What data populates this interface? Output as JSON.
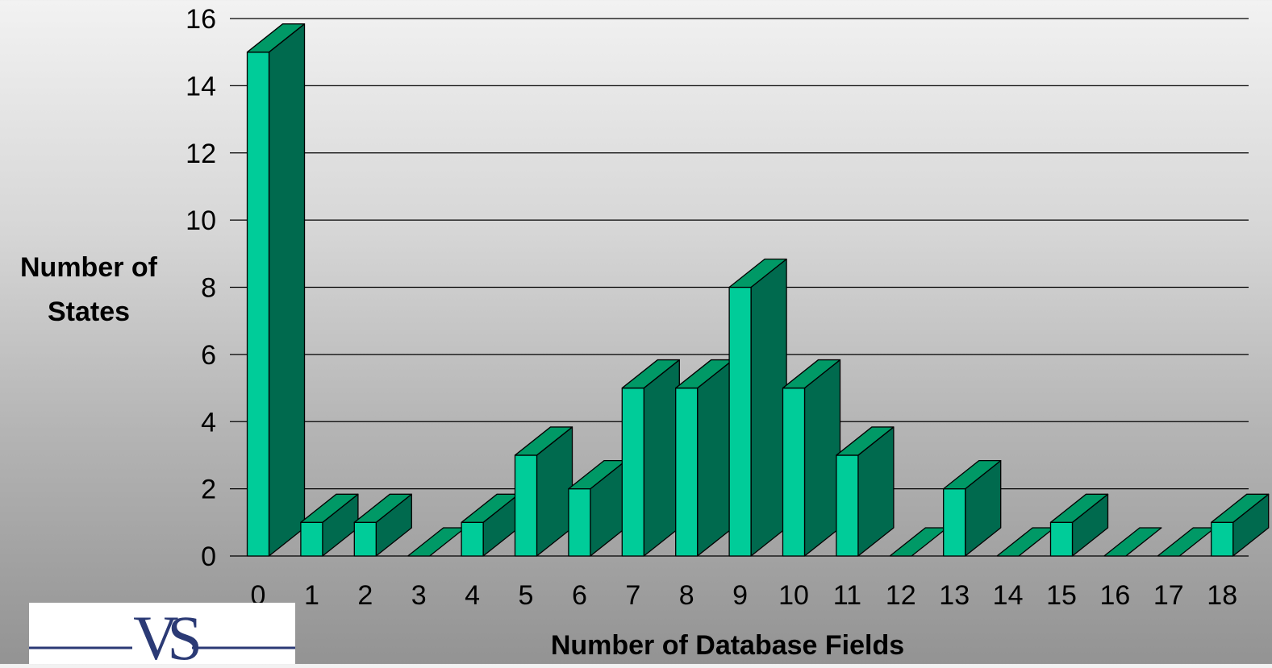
{
  "chart_data": {
    "type": "bar",
    "categories": [
      "0",
      "1",
      "2",
      "3",
      "4",
      "5",
      "6",
      "7",
      "8",
      "9",
      "10",
      "11",
      "12",
      "13",
      "14",
      "15",
      "16",
      "17",
      "18"
    ],
    "values": [
      15,
      1,
      1,
      0,
      1,
      3,
      2,
      5,
      5,
      8,
      5,
      3,
      0,
      2,
      0,
      1,
      0,
      0,
      1
    ],
    "title": "",
    "xlabel": "Number of Database Fields",
    "ylabel_lines": [
      "Number of",
      "States"
    ],
    "ylim": [
      0,
      16
    ],
    "yticks": [
      0,
      2,
      4,
      6,
      8,
      10,
      12,
      14,
      16
    ],
    "grid": true,
    "bar_front_color": "#00cc99",
    "bar_side_color": "#006a4e",
    "bar_top_color": "#009966"
  },
  "logo": {
    "mark": "VS",
    "accent_color": "#2b3a75"
  }
}
